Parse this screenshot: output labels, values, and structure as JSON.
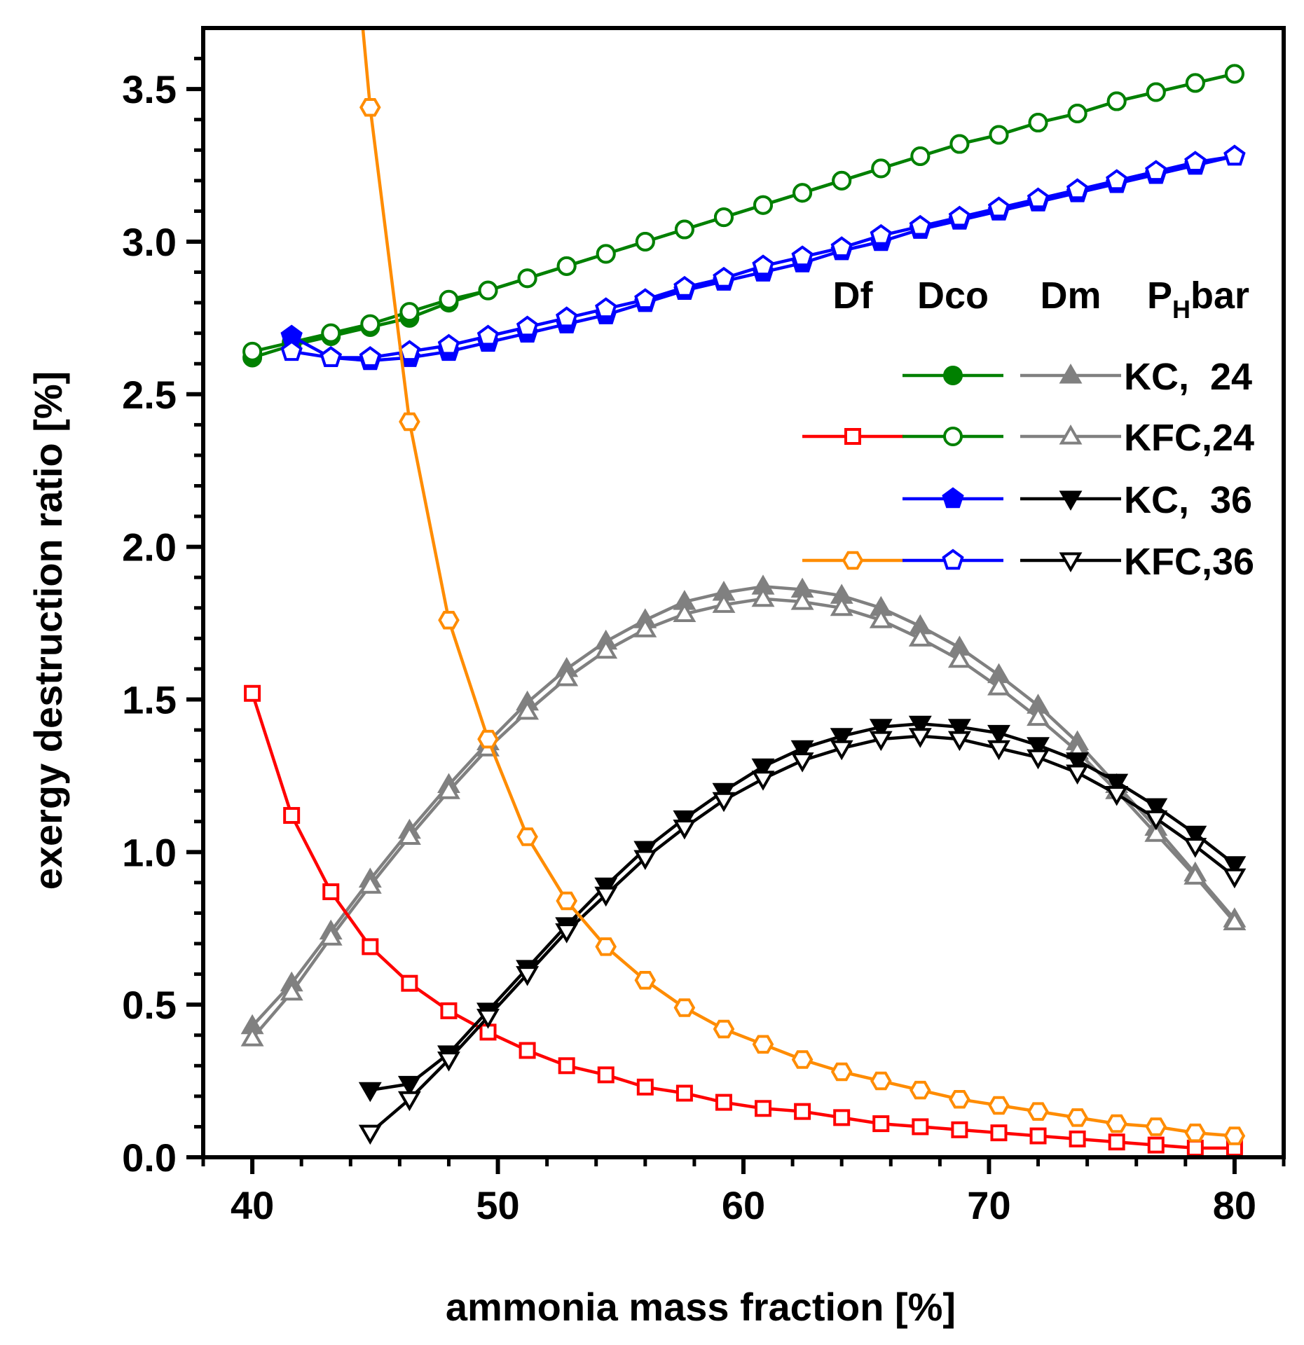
{
  "chart_data": {
    "type": "line",
    "xlabel": "ammonia mass fraction [%]",
    "ylabel": "exergy destruction ratio [%]",
    "xlim": [
      38,
      82
    ],
    "ylim": [
      0,
      3.7
    ],
    "x_ticks": [
      40,
      50,
      60,
      70,
      80
    ],
    "x_tick_labels": [
      "40",
      "50",
      "60",
      "70",
      "80"
    ],
    "y_ticks": [
      0.0,
      0.5,
      1.0,
      1.5,
      2.0,
      2.5,
      3.0,
      3.5
    ],
    "y_tick_labels": [
      "0.0",
      "0.5",
      "1.0",
      "1.5",
      "2.0",
      "2.5",
      "3.0",
      "3.5"
    ],
    "grid": false,
    "legend": {
      "placement": "right",
      "headers": {
        "df": "Df",
        "dco": "Dco",
        "dm": "Dm",
        "ph_main": "P",
        "ph_sub": "H",
        "ph_suffix": "bar"
      },
      "rows": [
        {
          "label": "KC,  24",
          "df": null,
          "dco": "Dco_KC_24",
          "dm": "Dm_KC_24"
        },
        {
          "label": "KFC,24",
          "df": "Df_KFC_24",
          "dco": "Dco_KFC_24",
          "dm": "Dm_KFC_24"
        },
        {
          "label": "KC,  36",
          "df": null,
          "dco": "Dco_KC_36",
          "dm": "Dm_KC_36"
        },
        {
          "label": "KFC,36",
          "df": "Df_KFC_36",
          "dco": "Dco_KFC_36",
          "dm": "Dm_KFC_36"
        }
      ]
    },
    "series": [
      {
        "id": "Df_KFC_24",
        "color": "#ff0000",
        "marker": "square",
        "filled": false,
        "x": [
          40,
          41.6,
          43.2,
          44.8,
          46.4,
          48.0,
          49.6,
          51.2,
          52.8,
          54.4,
          56.0,
          57.6,
          59.2,
          60.8,
          62.4,
          64.0,
          65.6,
          67.2,
          68.8,
          70.4,
          72.0,
          73.6,
          75.2,
          76.8,
          78.4,
          80.0
        ],
        "y": [
          1.52,
          1.12,
          0.87,
          0.69,
          0.57,
          0.48,
          0.41,
          0.35,
          0.3,
          0.27,
          0.23,
          0.21,
          0.18,
          0.16,
          0.15,
          0.13,
          0.11,
          0.1,
          0.09,
          0.08,
          0.07,
          0.06,
          0.05,
          0.04,
          0.03,
          0.03
        ]
      },
      {
        "id": "Df_KFC_36",
        "color": "#ff8c00",
        "marker": "hexagon",
        "filled": false,
        "x": [
          44.8,
          46.4,
          48.0,
          49.6,
          51.2,
          52.8,
          54.4,
          56.0,
          57.6,
          59.2,
          60.8,
          62.4,
          64.0,
          65.6,
          67.2,
          68.8,
          70.4,
          72.0,
          73.6,
          75.2,
          76.8,
          78.4,
          80.0
        ],
        "y": [
          3.44,
          2.41,
          1.76,
          1.37,
          1.05,
          0.84,
          0.69,
          0.58,
          0.49,
          0.42,
          0.37,
          0.32,
          0.28,
          0.25,
          0.22,
          0.19,
          0.17,
          0.15,
          0.13,
          0.11,
          0.1,
          0.08,
          0.07
        ],
        "curve_start": [
          44.5,
          3.7
        ]
      },
      {
        "id": "Dco_KC_24",
        "color": "#008000",
        "marker": "circle",
        "filled": true,
        "x": [
          40,
          41.6,
          43.2,
          44.8,
          46.4,
          48.0,
          49.6,
          51.2,
          52.8,
          54.4,
          56.0,
          57.6,
          59.2,
          60.8,
          62.4,
          64.0,
          65.6,
          67.2,
          68.8,
          70.4,
          72.0,
          73.6,
          75.2,
          76.8,
          78.4,
          80.0
        ],
        "y": [
          2.62,
          2.66,
          2.69,
          2.72,
          2.75,
          2.8,
          2.84,
          2.88,
          2.92,
          2.96,
          3.0,
          3.04,
          3.08,
          3.12,
          3.16,
          3.2,
          3.24,
          3.28,
          3.32,
          3.35,
          3.39,
          3.42,
          3.46,
          3.49,
          3.52,
          3.55
        ]
      },
      {
        "id": "Dco_KFC_24",
        "color": "#008000",
        "marker": "circle",
        "filled": false,
        "x": [
          40,
          41.6,
          43.2,
          44.8,
          46.4,
          48.0,
          49.6,
          51.2,
          52.8,
          54.4,
          56.0,
          57.6,
          59.2,
          60.8,
          62.4,
          64.0,
          65.6,
          67.2,
          68.8,
          70.4,
          72.0,
          73.6,
          75.2,
          76.8,
          78.4,
          80.0
        ],
        "y": [
          2.64,
          2.67,
          2.7,
          2.73,
          2.77,
          2.81,
          2.84,
          2.88,
          2.92,
          2.96,
          3.0,
          3.04,
          3.08,
          3.12,
          3.16,
          3.2,
          3.24,
          3.28,
          3.32,
          3.35,
          3.39,
          3.42,
          3.46,
          3.49,
          3.52,
          3.55
        ]
      },
      {
        "id": "Dco_KC_36",
        "color": "#0000ff",
        "marker": "pentagon",
        "filled": true,
        "x": [
          41.6,
          43.2,
          44.8,
          46.4,
          48.0,
          49.6,
          51.2,
          52.8,
          54.4,
          56.0,
          57.6,
          59.2,
          60.8,
          62.4,
          64.0,
          65.6,
          67.2,
          68.8,
          70.4,
          72.0,
          73.6,
          75.2,
          76.8,
          78.4,
          80.0
        ],
        "y": [
          2.69,
          2.62,
          2.61,
          2.62,
          2.64,
          2.67,
          2.7,
          2.73,
          2.76,
          2.8,
          2.84,
          2.87,
          2.9,
          2.93,
          2.97,
          3.0,
          3.04,
          3.07,
          3.1,
          3.13,
          3.16,
          3.19,
          3.22,
          3.25,
          3.28
        ]
      },
      {
        "id": "Dco_KFC_36",
        "color": "#0000ff",
        "marker": "pentagon",
        "filled": false,
        "x": [
          41.6,
          43.2,
          44.8,
          46.4,
          48.0,
          49.6,
          51.2,
          52.8,
          54.4,
          56.0,
          57.6,
          59.2,
          60.8,
          62.4,
          64.0,
          65.6,
          67.2,
          68.8,
          70.4,
          72.0,
          73.6,
          75.2,
          76.8,
          78.4,
          80.0
        ],
        "y": [
          2.64,
          2.62,
          2.62,
          2.64,
          2.66,
          2.69,
          2.72,
          2.75,
          2.78,
          2.81,
          2.85,
          2.88,
          2.92,
          2.95,
          2.98,
          3.02,
          3.05,
          3.08,
          3.11,
          3.14,
          3.17,
          3.2,
          3.23,
          3.26,
          3.28
        ]
      },
      {
        "id": "Dm_KC_24",
        "color": "#808080",
        "marker": "triangle-up",
        "filled": true,
        "x": [
          40,
          41.6,
          43.2,
          44.8,
          46.4,
          48.0,
          49.6,
          51.2,
          52.8,
          54.4,
          56.0,
          57.6,
          59.2,
          60.8,
          62.4,
          64.0,
          65.6,
          67.2,
          68.8,
          70.4,
          72.0,
          73.6,
          75.2,
          76.8,
          78.4,
          80.0
        ],
        "y": [
          0.43,
          0.57,
          0.74,
          0.91,
          1.07,
          1.22,
          1.36,
          1.49,
          1.6,
          1.69,
          1.76,
          1.82,
          1.85,
          1.87,
          1.86,
          1.84,
          1.8,
          1.74,
          1.67,
          1.58,
          1.48,
          1.36,
          1.22,
          1.08,
          0.93,
          0.78
        ]
      },
      {
        "id": "Dm_KFC_24",
        "color": "#808080",
        "marker": "triangle-up",
        "filled": false,
        "x": [
          40,
          41.6,
          43.2,
          44.8,
          46.4,
          48.0,
          49.6,
          51.2,
          52.8,
          54.4,
          56.0,
          57.6,
          59.2,
          60.8,
          62.4,
          64.0,
          65.6,
          67.2,
          68.8,
          70.4,
          72.0,
          73.6,
          75.2,
          76.8,
          78.4,
          80.0
        ],
        "y": [
          0.39,
          0.54,
          0.72,
          0.89,
          1.05,
          1.2,
          1.34,
          1.46,
          1.57,
          1.66,
          1.73,
          1.78,
          1.81,
          1.83,
          1.82,
          1.8,
          1.76,
          1.7,
          1.63,
          1.54,
          1.44,
          1.33,
          1.2,
          1.06,
          0.92,
          0.77
        ]
      },
      {
        "id": "Dm_KC_36",
        "color": "#000000",
        "marker": "triangle-down",
        "filled": true,
        "x": [
          44.8,
          46.4,
          48.0,
          49.6,
          51.2,
          52.8,
          54.4,
          56.0,
          57.6,
          59.2,
          60.8,
          62.4,
          64.0,
          65.6,
          67.2,
          68.8,
          70.4,
          72.0,
          73.6,
          75.2,
          76.8,
          78.4,
          80.0
        ],
        "y": [
          0.22,
          0.24,
          0.34,
          0.48,
          0.62,
          0.76,
          0.89,
          1.01,
          1.11,
          1.2,
          1.28,
          1.34,
          1.38,
          1.41,
          1.42,
          1.41,
          1.39,
          1.35,
          1.3,
          1.23,
          1.15,
          1.06,
          0.96
        ]
      },
      {
        "id": "Dm_KFC_36",
        "color": "#000000",
        "marker": "triangle-down",
        "filled": false,
        "x": [
          44.8,
          46.4,
          48.0,
          49.6,
          51.2,
          52.8,
          54.4,
          56.0,
          57.6,
          59.2,
          60.8,
          62.4,
          64.0,
          65.6,
          67.2,
          68.8,
          70.4,
          72.0,
          73.6,
          75.2,
          76.8,
          78.4,
          80.0
        ],
        "y": [
          0.08,
          0.19,
          0.32,
          0.46,
          0.6,
          0.74,
          0.86,
          0.98,
          1.08,
          1.17,
          1.24,
          1.3,
          1.34,
          1.37,
          1.38,
          1.37,
          1.34,
          1.31,
          1.26,
          1.19,
          1.11,
          1.02,
          0.92
        ]
      }
    ]
  }
}
